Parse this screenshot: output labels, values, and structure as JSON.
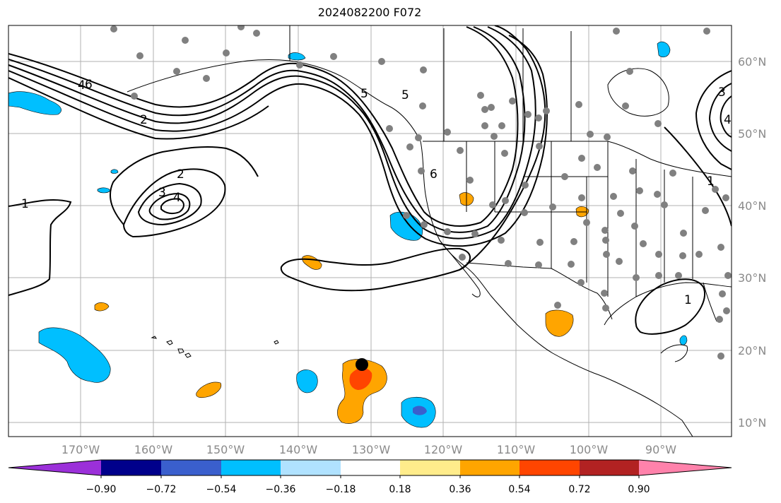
{
  "title": "2024082200 F072",
  "map": {
    "lat_labels": [
      "60°N",
      "50°N",
      "40°N",
      "30°N",
      "20°N",
      "10°N"
    ],
    "lon_labels": [
      "170°W",
      "160°W",
      "150°W",
      "140°W",
      "130°W",
      "120°W",
      "110°W",
      "100°W",
      "90°W"
    ],
    "contour_labels": [
      "6",
      "5",
      "4",
      "2",
      "2",
      "3",
      "4",
      "1",
      "1",
      "5",
      "6",
      "3",
      "4",
      "1"
    ],
    "colors": {
      "coast": "#000000",
      "grid": "#b0b0b0",
      "contour": "#000000",
      "station": "#808080",
      "marker": "#000000"
    }
  },
  "colorbar": {
    "tick_labels": [
      "−0.90",
      "−0.72",
      "−0.54",
      "−0.36",
      "−0.18",
      "0.18",
      "0.36",
      "0.54",
      "0.72",
      "0.90"
    ],
    "colors": [
      "#9b30d9",
      "#00008b",
      "#3a5fcd",
      "#00bfff",
      "#b0e2ff",
      "#ffffff",
      "#ffec8b",
      "#ffa500",
      "#ff4500",
      "#b22222",
      "#ff82ab"
    ]
  }
}
